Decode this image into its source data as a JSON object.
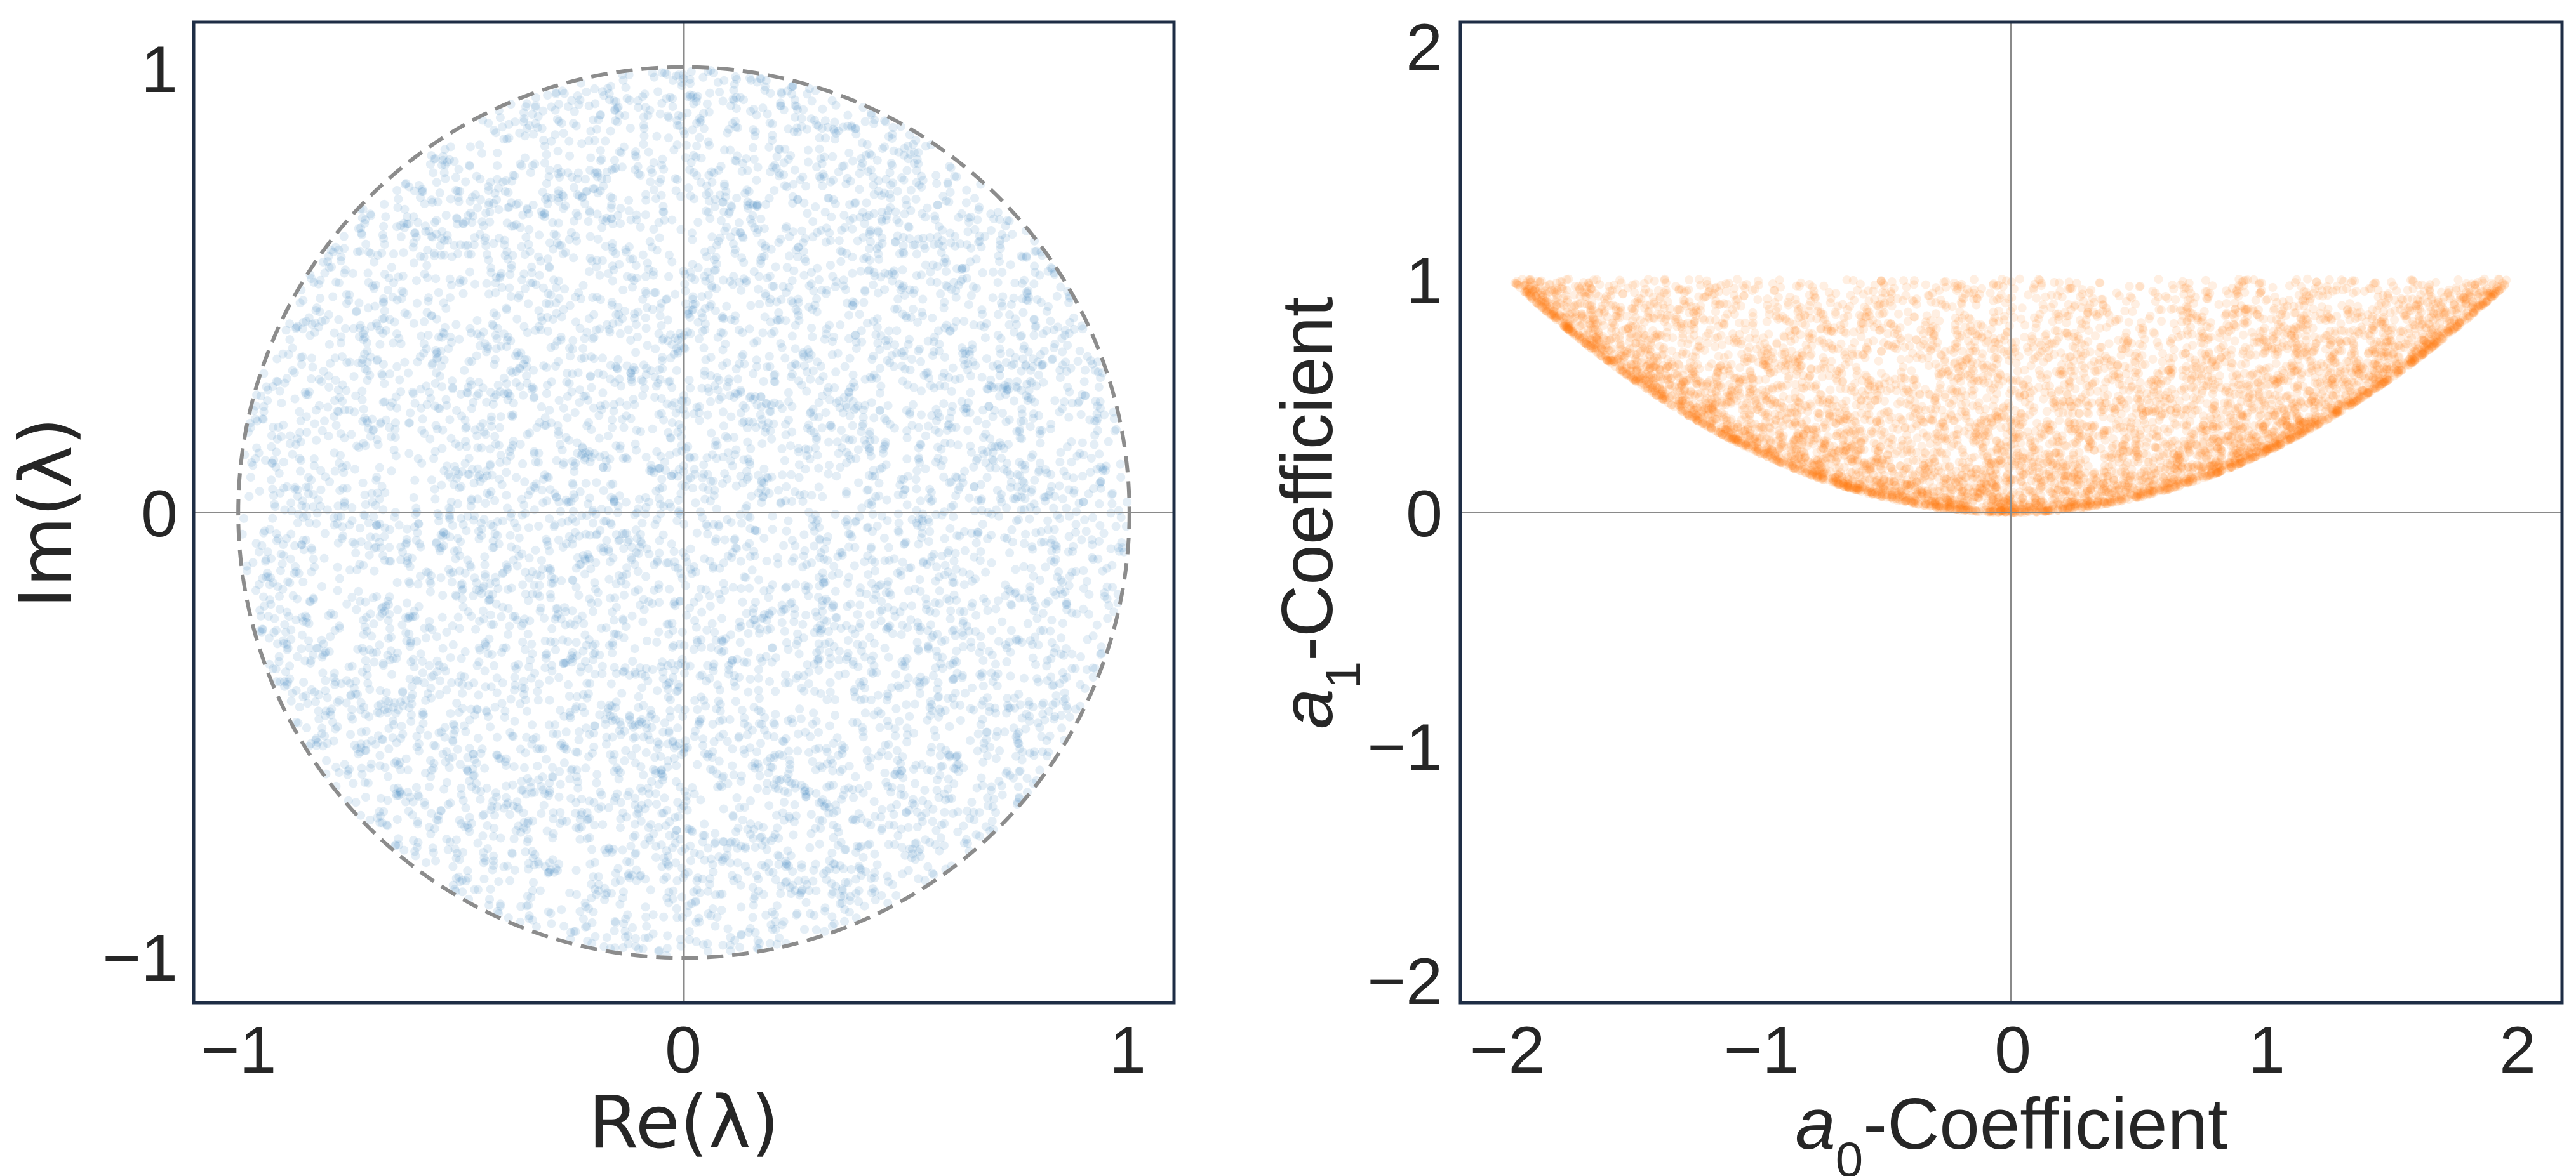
{
  "chart_data": [
    {
      "type": "scatter",
      "title": "",
      "xlabel": "Re(λ)",
      "ylabel": "Im(λ)",
      "xlim": [
        -1.1,
        1.1
      ],
      "ylim": [
        -1.1,
        1.1
      ],
      "xticks": [
        "−1",
        "0",
        "1"
      ],
      "xtick_values": [
        -1,
        0,
        1
      ],
      "yticks": [
        "−1",
        "0",
        "1"
      ],
      "ytick_values": [
        -1,
        0,
        1
      ],
      "grid": false,
      "reference_lines": {
        "x": 0,
        "y": 0
      },
      "boundary": {
        "shape": "circle",
        "center": [
          0,
          0
        ],
        "radius": 1,
        "style": "dashed",
        "color": "#8c8c8c"
      },
      "series": [
        {
          "color": "#1f77b4",
          "opacity": 0.12,
          "distribution": "uniform in unit disk",
          "x_range": [
            -1,
            1
          ],
          "y_range": [
            -1,
            1
          ]
        }
      ]
    },
    {
      "type": "scatter",
      "title": "",
      "xlabel": "a0-Coefficient",
      "ylabel": "a1-Coefficient",
      "xlim": [
        -2.2,
        2.2
      ],
      "ylim": [
        -2.1,
        2.1
      ],
      "xticks": [
        "−2",
        "−1",
        "0",
        "1",
        "2"
      ],
      "xtick_values": [
        -2,
        -1,
        0,
        1,
        2
      ],
      "yticks": [
        "−2",
        "−1",
        "0",
        "1",
        "2"
      ],
      "ytick_values": [
        -2,
        -1,
        0,
        1,
        2
      ],
      "grid": false,
      "reference_lines": {
        "x": 0,
        "y": 0
      },
      "series": [
        {
          "color": "#ff7f0e",
          "opacity": 0.12,
          "distribution": "region bounded below by a1 = a0²/4 and above by a1 = 1",
          "x_range": [
            -2,
            2
          ],
          "y_range": [
            0,
            1
          ]
        }
      ]
    }
  ]
}
